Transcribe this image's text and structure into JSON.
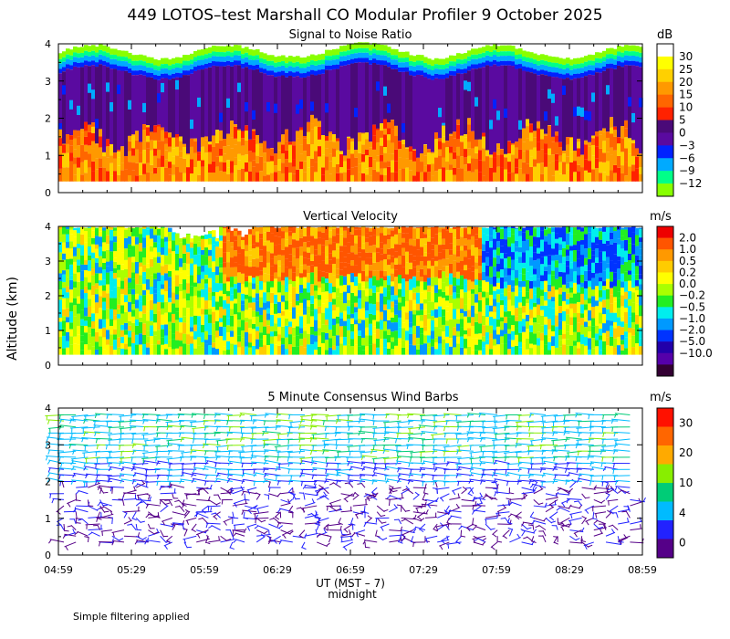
{
  "title": "449 LOTOS–test Marshall CO Modular Profiler  9 October 2025",
  "y_axis_label": "Altitude (km)",
  "x_axis_label": "UT (MST – 7)",
  "x_annotation": "midnight",
  "footer_note": "Simple filtering applied",
  "x_ticks": [
    "04:59",
    "05:29",
    "05:59",
    "06:29",
    "06:59",
    "07:29",
    "07:59",
    "08:29",
    "08:59"
  ],
  "panels": [
    {
      "id": "snr",
      "title": "Signal to Noise Ratio",
      "unit": "dB",
      "y_ticks": [
        "0",
        "1",
        "2",
        "3",
        "4"
      ],
      "colorbar_labels": [
        "30",
        "25",
        "20",
        "15",
        "10",
        "5",
        "0",
        "−3",
        "−6",
        "−9",
        "−12"
      ],
      "colors": [
        "#ffffff",
        "#ffff00",
        "#ffd000",
        "#ff9900",
        "#ff6600",
        "#ff2200",
        "#4a0a78",
        "#5a0aa0",
        "#0022ff",
        "#00aaff",
        "#00ff88",
        "#88ff00"
      ]
    },
    {
      "id": "vv",
      "title": "Vertical Velocity",
      "unit": "m/s",
      "y_ticks": [
        "0",
        "1",
        "2",
        "3",
        "4"
      ],
      "colorbar_labels": [
        "2.0",
        "1.0",
        "0.5",
        "0.2",
        "0.0",
        "−0.2",
        "−0.5",
        "−1.0",
        "−2.0",
        "−5.0",
        "−10.0"
      ],
      "colors": [
        "#ee0000",
        "#ff5500",
        "#ff9900",
        "#ffcc00",
        "#ffff00",
        "#aaff00",
        "#22ee22",
        "#00eeee",
        "#0099ff",
        "#0033ff",
        "#2200aa",
        "#5500aa",
        "#330033"
      ]
    },
    {
      "id": "wind",
      "title": "5 Minute Consensus Wind Barbs",
      "unit": "m/s",
      "y_ticks": [
        "0",
        "1",
        "2",
        "3",
        "4"
      ],
      "colorbar_labels": [
        "30",
        "20",
        "10",
        "4",
        "0"
      ],
      "colors": [
        "#ff1100",
        "#ff6600",
        "#ffaa00",
        "#88ee00",
        "#00cc77",
        "#00bbff",
        "#2222ff",
        "#550088"
      ]
    }
  ],
  "chart_data": [
    {
      "type": "heatmap",
      "title": "Signal to Noise Ratio",
      "xlabel": "UT (MST – 7)",
      "ylabel": "Altitude (km)",
      "x_range": [
        "04:59",
        "08:59"
      ],
      "ylim": [
        0,
        4
      ],
      "colorbar_unit": "dB",
      "colorbar_range": [
        -12,
        30
      ],
      "description_values": {
        "signal_top_km": [
          3.6,
          4.0
        ],
        "high_snr_below_km": 1.7
      }
    },
    {
      "type": "heatmap",
      "title": "Vertical Velocity",
      "xlabel": "UT (MST – 7)",
      "ylabel": "Altitude (km)",
      "x_range": [
        "04:59",
        "08:59"
      ],
      "ylim": [
        0,
        4
      ],
      "colorbar_unit": "m/s",
      "colorbar_range": [
        -10.0,
        2.0
      ]
    },
    {
      "type": "scatter",
      "title": "5 Minute Consensus Wind Barbs",
      "xlabel": "UT (MST – 7)",
      "ylabel": "Altitude (km)",
      "x_range": [
        "04:59",
        "08:59"
      ],
      "ylim": [
        0,
        4
      ],
      "colorbar_unit": "m/s",
      "colorbar_range": [
        0,
        30
      ]
    }
  ]
}
